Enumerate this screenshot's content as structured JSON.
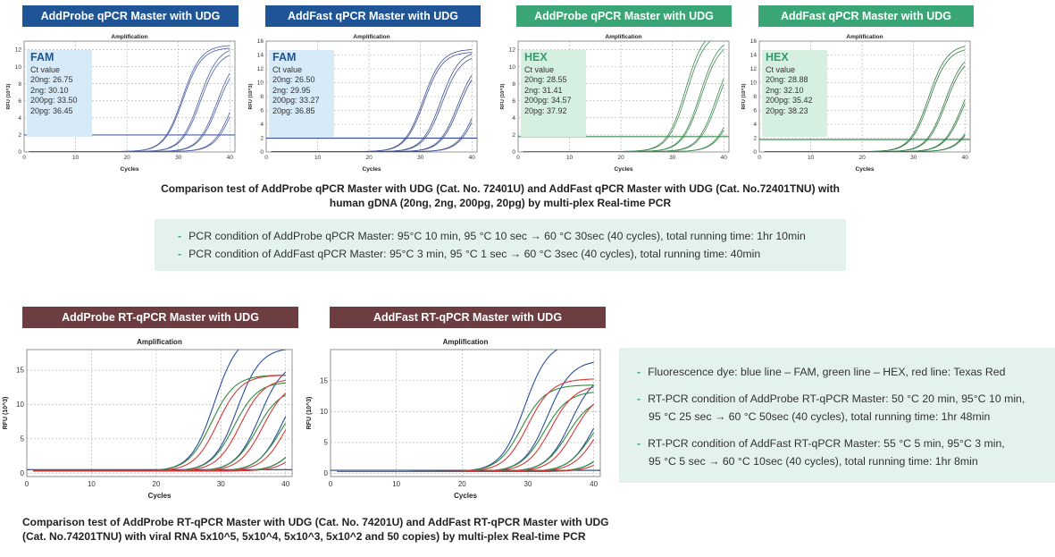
{
  "top": {
    "headers": [
      {
        "label": "AddProbe qPCR Master with UDG",
        "color": "#1f5596"
      },
      {
        "label": "AddFast qPCR Master with UDG",
        "color": "#1f5596"
      },
      {
        "label": "AddProbe qPCR Master with UDG",
        "color": "#3aa675"
      },
      {
        "label": "AddFast qPCR Master with UDG",
        "color": "#3aa675"
      }
    ],
    "caption_line1": "Comparison test of AddProbe qPCR Master with UDG (Cat. No. 72401U) and AddFast qPCR Master with UDG (Cat. No.72401TNU) with",
    "caption_line2": "human gDNA (20ng, 2ng, 200pg, 20pg) by multi-plex Real-time PCR",
    "conditions": [
      "PCR condition of AddProbe qPCR Master: 95°C 10 min, 95 °C 10 sec → 60 °C 30sec (40 cycles), total running time: 1hr 10min",
      "PCR condition of AddFast qPCR Master: 95°C 3 min, 95 °C 1 sec → 60 °C 3sec (40 cycles), total running time: 40min"
    ],
    "bullet_symbol": "-"
  },
  "bottom": {
    "headers": [
      {
        "label": "AddProbe RT-qPCR Master with UDG",
        "color": "#6e3d41"
      },
      {
        "label": "AddFast RT-qPCR Master with UDG",
        "color": "#6e3d41"
      }
    ],
    "caption_line1": "Comparison test of AddProbe RT-qPCR Master with UDG (Cat. No. 74201U) and AddFast RT-qPCR Master with UDG",
    "caption_line2": "(Cat. No.74201TNU) with viral RNA 5x10^5, 5x10^4, 5x10^3, 5x10^2 and 50 copies) by multi-plex Real-time PCR",
    "info_lines": [
      "Fluorescence dye: blue line – FAM, green line – HEX, red line: Texas Red",
      "RT-PCR condition of AddProbe RT-qPCR Master: 50 °C  20 min, 95°C 10 min,",
      "95 °C 25 sec → 60 °C 50sec (40 cycles), total running time: 1hr 48min",
      "RT-PCR condition of AddFast RT-qPCR Master: 55 °C 5 min, 95°C 3 min,",
      "95 °C 5 sec → 60 °C 10sec (40 cycles), total running time: 1hr 8min"
    ],
    "bullet_symbol": "-"
  },
  "chart_data": [
    {
      "type": "line",
      "title": "Amplification",
      "xlabel": "Cycles",
      "ylabel": "RFU (10^3)",
      "xlim": [
        0,
        41
      ],
      "ylim": [
        0,
        13
      ],
      "xticks": [
        0,
        10,
        20,
        30,
        40
      ],
      "yticks": [
        0,
        2,
        4,
        6,
        8,
        10,
        12
      ],
      "threshold": 2.0,
      "grid": true,
      "line_color": "#4a5fa5",
      "dye": "FAM",
      "ct_title": "Ct value",
      "ct_values": [
        "20ng: 26.75",
        "2ng: 30.10",
        "200pg: 33.50",
        "20pg: 36.45"
      ],
      "series": [
        {
          "ct": 26.75,
          "plateau": 12.5
        },
        {
          "ct": 26.9,
          "plateau": 12.2
        },
        {
          "ct": 30.1,
          "plateau": 12.3
        },
        {
          "ct": 30.3,
          "plateau": 11.8
        },
        {
          "ct": 33.5,
          "plateau": 11.5
        },
        {
          "ct": 33.7,
          "plateau": 11.0
        },
        {
          "ct": 36.45,
          "plateau": 10.5
        },
        {
          "ct": 36.7,
          "plateau": 10.0
        }
      ]
    },
    {
      "type": "line",
      "title": "Amplification",
      "xlabel": "Cycles",
      "ylabel": "RFU (10^3)",
      "xlim": [
        0,
        41
      ],
      "ylim": [
        0,
        16
      ],
      "xticks": [
        0,
        10,
        20,
        30,
        40
      ],
      "yticks": [
        0,
        2,
        4,
        6,
        8,
        10,
        12,
        14,
        16
      ],
      "threshold": 2.0,
      "grid": true,
      "line_color": "#3d4f94",
      "dye": "FAM",
      "ct_title": "Ct value",
      "ct_values": [
        "20ng: 26.50",
        "2ng: 29.95",
        "200pg: 33.27",
        "20pg: 36.85"
      ],
      "series": [
        {
          "ct": 26.5,
          "plateau": 14.8
        },
        {
          "ct": 26.7,
          "plateau": 14.4
        },
        {
          "ct": 29.95,
          "plateau": 14.6
        },
        {
          "ct": 30.2,
          "plateau": 14.0
        },
        {
          "ct": 33.27,
          "plateau": 13.5
        },
        {
          "ct": 33.5,
          "plateau": 13.0
        },
        {
          "ct": 36.85,
          "plateau": 12.5
        },
        {
          "ct": 37.1,
          "plateau": 12.0
        }
      ]
    },
    {
      "type": "line",
      "title": "Amplification",
      "xlabel": "Cycles",
      "ylabel": "RFU (10^3)",
      "xlim": [
        0,
        41
      ],
      "ylim": [
        0,
        13
      ],
      "xticks": [
        0,
        10,
        20,
        30,
        40
      ],
      "yticks": [
        0,
        2,
        4,
        6,
        8,
        10,
        12
      ],
      "threshold": 1.8,
      "grid": true,
      "line_color": "#3f8a4f",
      "dye": "HEX",
      "ct_title": "Ct value",
      "ct_values": [
        "20ng: 28.55",
        "2ng: 31.41",
        "200pg: 34.57",
        "20pg: 37.92"
      ],
      "series": [
        {
          "ct": 28.55,
          "plateau": 14.5
        },
        {
          "ct": 28.8,
          "plateau": 14.0
        },
        {
          "ct": 31.41,
          "plateau": 13.5
        },
        {
          "ct": 31.6,
          "plateau": 13.0
        },
        {
          "ct": 34.57,
          "plateau": 12.5
        },
        {
          "ct": 34.8,
          "plateau": 12.0
        },
        {
          "ct": 37.92,
          "plateau": 11.0
        },
        {
          "ct": 38.1,
          "plateau": 10.5
        }
      ]
    },
    {
      "type": "line",
      "title": "Amplification",
      "xlabel": "Cycles",
      "ylabel": "RFU (10^3)",
      "xlim": [
        0,
        41
      ],
      "ylim": [
        0,
        16
      ],
      "xticks": [
        0,
        10,
        20,
        30,
        40
      ],
      "yticks": [
        0,
        2,
        4,
        6,
        8,
        10,
        12,
        14,
        16
      ],
      "threshold": 1.8,
      "grid": true,
      "line_color": "#2f7a40",
      "dye": "HEX",
      "ct_title": "Ct value",
      "ct_values": [
        "20ng: 28.88",
        "2ng: 32.10",
        "200pg: 35.42",
        "20pg: 38.23"
      ],
      "series": [
        {
          "ct": 28.88,
          "plateau": 15.5
        },
        {
          "ct": 29.1,
          "plateau": 15.0
        },
        {
          "ct": 32.1,
          "plateau": 14.5
        },
        {
          "ct": 32.3,
          "plateau": 14.0
        },
        {
          "ct": 35.42,
          "plateau": 13.0
        },
        {
          "ct": 35.6,
          "plateau": 12.5
        },
        {
          "ct": 38.23,
          "plateau": 11.5
        },
        {
          "ct": 38.4,
          "plateau": 11.0
        }
      ]
    },
    {
      "type": "line",
      "title": "Amplification",
      "xlabel": "Cycles",
      "ylabel": "RFU (10^3)",
      "xlim": [
        0,
        41
      ],
      "ylim": [
        -0.5,
        18
      ],
      "xticks": [
        0,
        10,
        20,
        30,
        40
      ],
      "yticks": [
        0,
        5,
        10,
        15
      ],
      "threshold": 0.5,
      "grid": true,
      "series": [
        {
          "color": "#2b4f9e",
          "ct": 25.0,
          "plateau": 20
        },
        {
          "color": "#2b4f9e",
          "ct": 28.5,
          "plateau": 18
        },
        {
          "color": "#2b4f9e",
          "ct": 32.0,
          "plateau": 16
        },
        {
          "color": "#2b4f9e",
          "ct": 35.5,
          "plateau": 14
        },
        {
          "color": "#2b4f9e",
          "ct": 38.5,
          "plateau": 10
        },
        {
          "color": "#2e8b3e",
          "ct": 24.5,
          "plateau": 14
        },
        {
          "color": "#2e8b3e",
          "ct": 28.0,
          "plateau": 13
        },
        {
          "color": "#2e8b3e",
          "ct": 31.5,
          "plateau": 12
        },
        {
          "color": "#2e8b3e",
          "ct": 35.0,
          "plateau": 11
        },
        {
          "color": "#2e8b3e",
          "ct": 38.0,
          "plateau": 8
        },
        {
          "color": "#d63a3a",
          "ct": 25.5,
          "plateau": 14
        },
        {
          "color": "#d63a3a",
          "ct": 29.0,
          "plateau": 13.5
        },
        {
          "color": "#d63a3a",
          "ct": 32.5,
          "plateau": 13
        },
        {
          "color": "#d63a3a",
          "ct": 36.0,
          "plateau": 12
        },
        {
          "color": "#d63a3a",
          "ct": 39.0,
          "plateau": 8
        }
      ]
    },
    {
      "type": "line",
      "title": "Amplification",
      "xlabel": "Cycles",
      "ylabel": "RFU (10^3)",
      "xlim": [
        0,
        41
      ],
      "ylim": [
        -0.5,
        20
      ],
      "xticks": [
        0,
        10,
        20,
        30,
        40
      ],
      "yticks": [
        0,
        5,
        10,
        15
      ],
      "threshold": 0.5,
      "grid": true,
      "series": [
        {
          "color": "#2b4f9e",
          "ct": 25.5,
          "plateau": 21
        },
        {
          "color": "#2b4f9e",
          "ct": 29.0,
          "plateau": 18
        },
        {
          "color": "#2b4f9e",
          "ct": 32.5,
          "plateau": 16
        },
        {
          "color": "#2b4f9e",
          "ct": 36.0,
          "plateau": 14
        },
        {
          "color": "#2b4f9e",
          "ct": 39.0,
          "plateau": 10
        },
        {
          "color": "#2e8b3e",
          "ct": 25.0,
          "plateau": 14
        },
        {
          "color": "#2e8b3e",
          "ct": 28.5,
          "plateau": 13
        },
        {
          "color": "#2e8b3e",
          "ct": 32.0,
          "plateau": 12
        },
        {
          "color": "#2e8b3e",
          "ct": 35.5,
          "plateau": 11
        },
        {
          "color": "#2e8b3e",
          "ct": 38.5,
          "plateau": 8
        },
        {
          "color": "#d63a3a",
          "ct": 26.0,
          "plateau": 15
        },
        {
          "color": "#d63a3a",
          "ct": 29.5,
          "plateau": 14
        },
        {
          "color": "#d63a3a",
          "ct": 33.0,
          "plateau": 13
        },
        {
          "color": "#d63a3a",
          "ct": 36.5,
          "plateau": 12
        },
        {
          "color": "#d63a3a",
          "ct": 39.5,
          "plateau": 8
        }
      ]
    }
  ]
}
